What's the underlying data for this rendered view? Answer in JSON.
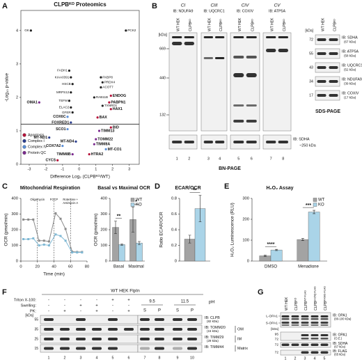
{
  "panel_letters": [
    "A",
    "B",
    "C",
    "D",
    "E",
    "F",
    "G"
  ],
  "chart_data": [
    {
      "type": "scatter",
      "title": "CLPBᴷᴼ Proteomics",
      "x_label": "Difference Log₂ (CLPBᴷᴼ/WT)",
      "y_label": "-Log₁₀ p-value",
      "xlim": [
        -3.5,
        3.6
      ],
      "ylim": [
        0,
        4.6
      ],
      "xticks": [
        -3,
        -2,
        -1,
        0,
        1,
        2,
        3
      ],
      "yticks": [
        0,
        1,
        2,
        3,
        4
      ],
      "significance_threshold": 1.2,
      "legend_corner": "bottom-left",
      "legend": [
        {
          "name": "Apoptosis",
          "color": "#b5123a"
        },
        {
          "name": "Complex I",
          "color": "#2c3e8f"
        },
        {
          "name": "Complex IV",
          "color": "#5b8fd6"
        },
        {
          "name": "Protein QC",
          "color": "#7b2b8f"
        }
      ],
      "points": [
        {
          "label": "GK",
          "x": -2.9,
          "y": 4.0,
          "color": "#222"
        },
        {
          "label": "PCK2",
          "x": 2.8,
          "y": 4.0,
          "color": "#222"
        },
        {
          "label": "FADH1",
          "x": -0.6,
          "y": 2.8,
          "color": "#222"
        },
        {
          "label": "KIAA0391",
          "x": -0.5,
          "y": 2.6,
          "color": "#222"
        },
        {
          "label": "HSCB",
          "x": -0.4,
          "y": 2.4,
          "color": "#222"
        },
        {
          "label": "MRPS12",
          "x": -0.5,
          "y": 2.15,
          "color": "#222"
        },
        {
          "label": "TEFM",
          "x": -0.6,
          "y": 1.9,
          "color": "#222"
        },
        {
          "label": "ELAC2",
          "x": -0.5,
          "y": 1.7,
          "color": "#222"
        },
        {
          "label": "GFER",
          "x": -0.4,
          "y": 1.55,
          "color": "#222"
        },
        {
          "label": "OMA1",
          "x": -2.4,
          "y": 1.85,
          "color": "#7b2b8f"
        },
        {
          "label": "COX6C",
          "x": -0.7,
          "y": 1.42,
          "color": "#5b8fd6"
        },
        {
          "label": "FOXRED1",
          "x": -0.5,
          "y": 1.25,
          "color": "#2c3e8f"
        },
        {
          "label": "SCO1",
          "x": -0.7,
          "y": 1.05,
          "color": "#5b8fd6"
        },
        {
          "label": "MT-ND1",
          "x": -1.8,
          "y": 0.8,
          "color": "#2c3e8f"
        },
        {
          "label": "COX7A2",
          "x": -1.0,
          "y": 0.55,
          "color": "#5b8fd6"
        },
        {
          "label": "MT-ND4",
          "x": -0.2,
          "y": 0.68,
          "color": "#2c3e8f"
        },
        {
          "label": "TIMM8B",
          "x": -0.4,
          "y": 0.3,
          "color": "#7b2b8f"
        },
        {
          "label": "CYCS",
          "x": -1.3,
          "y": 0.12,
          "color": "#b5123a"
        },
        {
          "label": "FKBP8",
          "x": 1.3,
          "y": 2.6,
          "color": "#222"
        },
        {
          "label": "PRDX4",
          "x": 1.4,
          "y": 2.45,
          "color": "#222"
        },
        {
          "label": "ACOT7",
          "x": 1.3,
          "y": 2.3,
          "color": "#222"
        },
        {
          "label": "RAB11B",
          "x": 0.9,
          "y": 2.0,
          "color": "#222"
        },
        {
          "label": "ENDOG",
          "x": 1.9,
          "y": 2.05,
          "color": "#b5123a"
        },
        {
          "label": "PABPN1",
          "x": 1.8,
          "y": 1.85,
          "color": "#b5123a"
        },
        {
          "label": "HAX1",
          "x": 1.9,
          "y": 1.65,
          "color": "#b5123a"
        },
        {
          "label": "TXNRD1",
          "x": 1.4,
          "y": 1.75,
          "color": "#222"
        },
        {
          "label": "BAX",
          "x": 1.1,
          "y": 1.4,
          "color": "#b5123a"
        },
        {
          "label": "BID",
          "x": 1.9,
          "y": 1.1,
          "color": "#b5123a"
        },
        {
          "label": "TIMM13",
          "x": 1.2,
          "y": 1.0,
          "color": "#7b2b8f"
        },
        {
          "label": "TOMM22",
          "x": 1.0,
          "y": 0.75,
          "color": "#7b2b8f"
        },
        {
          "label": "TIMM8A",
          "x": 0.9,
          "y": 0.6,
          "color": "#7b2b8f"
        },
        {
          "label": "MT-CO1",
          "x": 1.6,
          "y": 0.45,
          "color": "#5b8fd6"
        },
        {
          "label": "HTRA2",
          "x": 0.6,
          "y": 0.3,
          "color": "#b5123a"
        }
      ]
    },
    {
      "type": "line",
      "title": "Mitochondrial Respiration",
      "x_label": "Time (min)",
      "y_label": "OCR (pmol/min)",
      "xlim": [
        0,
        80
      ],
      "ylim": [
        0,
        400
      ],
      "xticks": [
        0,
        20,
        40,
        60,
        80
      ],
      "yticks": [
        0,
        100,
        200,
        300,
        400
      ],
      "injections": [
        {
          "time": 20,
          "label": [
            "Oligomycin"
          ]
        },
        {
          "time": 40,
          "label": [
            "FCCP"
          ]
        },
        {
          "time": 60,
          "label": [
            "Rotenone +",
            "Antimycin A"
          ]
        }
      ],
      "x": [
        3,
        9,
        15,
        22,
        28,
        34,
        42,
        48,
        54,
        62,
        68,
        74
      ],
      "series": [
        {
          "name": "WT",
          "color": "#8a8a8a",
          "values": [
            265,
            265,
            265,
            130,
            130,
            125,
            305,
            270,
            205,
            60,
            58,
            58
          ]
        },
        {
          "name": "KO",
          "color": "#7fb8d4",
          "values": [
            140,
            140,
            145,
            100,
            105,
            100,
            170,
            160,
            130,
            55,
            55,
            55
          ]
        }
      ]
    },
    {
      "type": "bar",
      "title": "Basal vs Maximal OCR",
      "y_label": "OCR (pmol/min)",
      "categories": [
        "Basal",
        "Maximal"
      ],
      "ylim": [
        0,
        400
      ],
      "yticks": [
        0,
        100,
        200,
        300,
        400
      ],
      "legend_corner": "top-right",
      "series": [
        {
          "name": "WT",
          "color": "#a3a3a3",
          "values": [
            215,
            265
          ],
          "errors": [
            40,
            80
          ]
        },
        {
          "name": "KO",
          "color": "#aad4e8",
          "values": [
            105,
            115
          ],
          "errors": [
            5,
            10
          ]
        }
      ],
      "significance": [
        "**",
        "*"
      ]
    },
    {
      "type": "bar",
      "title": "ECAR/OCR",
      "y_label": "Ratio ECAR/OCR",
      "ylim": [
        0,
        0.8
      ],
      "yticks": [
        0,
        0.2,
        0.4,
        0.6,
        0.8
      ],
      "series": [
        {
          "color": "#a3a3a3",
          "values": [
            0.28
          ],
          "errors": [
            0.05
          ]
        },
        {
          "color": "#aad4e8",
          "values": [
            0.67
          ],
          "errors": [
            0.17
          ]
        }
      ],
      "significance": [
        "**"
      ]
    },
    {
      "type": "bar",
      "title": "H₂O₂ Assay",
      "y_label": "H₂O₂ Luminescence (RLU)",
      "categories": [
        "DMSO",
        "Menadione"
      ],
      "ylim": [
        0,
        300
      ],
      "yticks": [
        0,
        100,
        200,
        300
      ],
      "legend_corner": "top-right",
      "series": [
        {
          "name": "WT",
          "color": "#a3a3a3",
          "values": [
            25,
            103
          ],
          "errors": [
            3,
            5
          ]
        },
        {
          "name": "KO",
          "color": "#aad4e8",
          "values": [
            53,
            235
          ],
          "errors": [
            3,
            8
          ]
        }
      ],
      "significance": [
        "****",
        "***"
      ]
    }
  ],
  "panel_B": {
    "groups": [
      {
        "complex": "CI",
        "ib": "IB: NDUFA9",
        "lanes": [
          "WT HEK",
          "CLPBᴷᴼ"
        ]
      },
      {
        "complex": "CIII",
        "ib": "IB: UQCRC1",
        "lanes": [
          "WT HEK",
          "CLPBᴷᴼ"
        ]
      },
      {
        "complex": "CIV",
        "ib": "IB: COXIV",
        "lanes": [
          "WT HEK",
          "CLPBᴷᴼ"
        ]
      },
      {
        "complex": "CV",
        "ib": "IB: ATP5A",
        "lanes": [
          "WT HEK",
          "CLPBᴷᴼ"
        ]
      }
    ],
    "lane_numbers": [
      1,
      2,
      3,
      4,
      5,
      6,
      7,
      8
    ],
    "kda_label": "[kDa]",
    "markers": [
      669,
      440,
      132
    ],
    "loading": "IB: SDHA",
    "loading_size": "~250 kDa",
    "footer": "BN-PAGE",
    "sds": {
      "lanes": [
        "WT HEK",
        "CLPBᴷᴼ"
      ],
      "kda_label": "[kDa]",
      "markers": [
        72,
        55,
        43,
        34,
        17
      ],
      "rows": [
        {
          "ib": "IB: SDHA",
          "size": "(67 kDa)"
        },
        {
          "ib": "IB: ATP5A",
          "size": "(58 kDa)"
        },
        {
          "ib": "IB: UQCRC1",
          "size": "(52 kDa)"
        },
        {
          "ib": "IB: NDUFA9",
          "size": "(39 kDa)"
        },
        {
          "ib": "IB: COXIV",
          "size": "(17 kDa)"
        }
      ],
      "footer": "SDS-PAGE"
    }
  },
  "panel_F": {
    "title": "WT HEK FlpIn",
    "conditions": [
      {
        "label": "Triton X-100:",
        "signs": [
          "-",
          "-",
          "-",
          "-",
          "+",
          "+"
        ]
      },
      {
        "label": "Swelling:",
        "signs": [
          "-",
          "-",
          "+",
          "+",
          "-",
          "-"
        ]
      },
      {
        "label": "PK:",
        "signs": [
          "-",
          "+",
          "-",
          "+",
          "-",
          "+"
        ]
      }
    ],
    "ph_label": "pH",
    "ph": [
      9.5,
      11.5
    ],
    "fractions": [
      "S",
      "P",
      "S",
      "P"
    ],
    "kda_label": "[kDa]",
    "markers": [
      55,
      35,
      25,
      15
    ],
    "rows": [
      {
        "ib": "IB: CLPB",
        "size": "(82 kDa)"
      },
      {
        "ib": "IB: TOMM20",
        "size": "(15 kDa)",
        "compartment": "OM"
      },
      {
        "ib": "IB: TIMM29",
        "size": "(29 kDa)",
        "compartment": "IM"
      },
      {
        "ib": "IB: TIMM44",
        "compartment": "Matrix"
      }
    ],
    "lane_numbers": [
      1,
      2,
      3,
      4,
      5,
      6,
      7,
      8,
      9,
      10
    ]
  },
  "panel_G": {
    "lanes": [
      {
        "base": "WT HEK"
      },
      {
        "base": "CLPB",
        "sup": "KO"
      },
      {
        "base": "CLPB",
        "sup": "WT-FLAG"
      },
      {
        "base": "CLPB",
        "sup": "E425Q-FLAG"
      },
      {
        "base": "CLPB",
        "sup": "R408G-FLAG"
      }
    ],
    "isoforms": [
      "L-OPA1",
      "S-OPA1"
    ],
    "kda_label": "[kDa]",
    "markers": [
      95,
      72,
      72,
      72
    ],
    "rows": [
      {
        "ib": "IB: OPA1",
        "size": "(80-100 kDa)"
      },
      {
        "ib": "IB: OPA1",
        "size": "(O.E.)"
      },
      {
        "ib": "IB: SDHA",
        "size": "(67 kDa)"
      },
      {
        "ib": "IB: FLAG",
        "size": "(65 kDa)"
      }
    ],
    "lane_numbers": [
      1,
      2,
      3,
      4,
      5
    ]
  }
}
